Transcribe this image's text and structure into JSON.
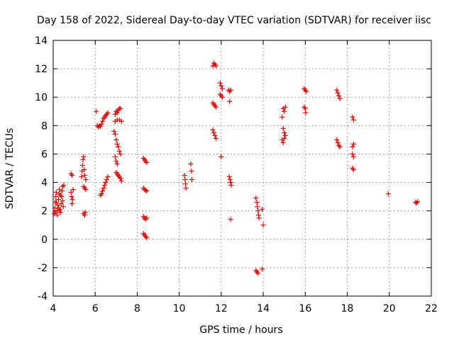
{
  "chart_data": {
    "type": "scatter",
    "title": "Day 158 of 2022, Sidereal Day-to-day VTEC variation (SDTVAR) for receiver iisc",
    "xlabel": "GPS time / hours",
    "ylabel": "SDTVAR / TECUs",
    "xlim": [
      4,
      22
    ],
    "ylim": [
      -4,
      14
    ],
    "xticks": [
      4,
      6,
      8,
      10,
      12,
      14,
      16,
      18,
      20,
      22
    ],
    "yticks": [
      -4,
      -2,
      0,
      2,
      4,
      6,
      8,
      10,
      12,
      14
    ],
    "grid": true,
    "marker_color": "#e00000",
    "series": [
      {
        "name": "SDTVAR",
        "points": [
          [
            4.05,
            1.8
          ],
          [
            4.08,
            2.2
          ],
          [
            4.1,
            2.6
          ],
          [
            4.12,
            3.0
          ],
          [
            4.15,
            3.3
          ],
          [
            4.18,
            2.0
          ],
          [
            4.2,
            1.7
          ],
          [
            4.22,
            2.4
          ],
          [
            4.25,
            2.8
          ],
          [
            4.28,
            3.2
          ],
          [
            4.3,
            3.5
          ],
          [
            4.32,
            2.1
          ],
          [
            4.35,
            1.9
          ],
          [
            4.38,
            2.5
          ],
          [
            4.4,
            3.0
          ],
          [
            4.42,
            3.4
          ],
          [
            4.45,
            3.7
          ],
          [
            4.48,
            2.3
          ],
          [
            4.5,
            3.8
          ],
          [
            4.15,
            2.6
          ],
          [
            4.25,
            2.2
          ],
          [
            4.35,
            3.1
          ],
          [
            4.45,
            2.7
          ],
          [
            4.1,
            1.9
          ],
          [
            4.3,
            2.0
          ],
          [
            4.85,
            4.6
          ],
          [
            4.9,
            4.5
          ],
          [
            4.85,
            3.3
          ],
          [
            4.88,
            3.0
          ],
          [
            4.92,
            2.8
          ],
          [
            4.95,
            3.5
          ],
          [
            4.9,
            2.5
          ],
          [
            5.35,
            4.4
          ],
          [
            5.38,
            4.8
          ],
          [
            5.4,
            5.2
          ],
          [
            5.42,
            5.6
          ],
          [
            5.45,
            5.8
          ],
          [
            5.48,
            4.9
          ],
          [
            5.5,
            4.5
          ],
          [
            5.55,
            4.2
          ],
          [
            5.45,
            3.7
          ],
          [
            5.5,
            3.6
          ],
          [
            5.55,
            3.5
          ],
          [
            5.45,
            1.8
          ],
          [
            5.5,
            1.7
          ],
          [
            5.52,
            1.9
          ],
          [
            6.05,
            9.0
          ],
          [
            6.1,
            8.0
          ],
          [
            6.15,
            7.9
          ],
          [
            6.2,
            8.0
          ],
          [
            6.25,
            7.95
          ],
          [
            6.3,
            8.1
          ],
          [
            6.35,
            8.3
          ],
          [
            6.4,
            8.5
          ],
          [
            6.45,
            8.6
          ],
          [
            6.5,
            8.7
          ],
          [
            6.55,
            8.8
          ],
          [
            6.6,
            8.9
          ],
          [
            6.25,
            3.1
          ],
          [
            6.3,
            3.2
          ],
          [
            6.35,
            3.4
          ],
          [
            6.4,
            3.6
          ],
          [
            6.45,
            3.8
          ],
          [
            6.5,
            4.0
          ],
          [
            6.55,
            4.2
          ],
          [
            6.6,
            4.4
          ],
          [
            6.9,
            7.6
          ],
          [
            6.95,
            7.4
          ],
          [
            7.0,
            7.0
          ],
          [
            7.05,
            6.7
          ],
          [
            7.1,
            6.5
          ],
          [
            7.15,
            6.2
          ],
          [
            7.2,
            6.0
          ],
          [
            6.95,
            5.8
          ],
          [
            7.0,
            5.5
          ],
          [
            7.05,
            5.3
          ],
          [
            6.95,
            8.8
          ],
          [
            7.0,
            9.0
          ],
          [
            7.05,
            8.9
          ],
          [
            7.1,
            9.1
          ],
          [
            7.15,
            9.2
          ],
          [
            7.2,
            9.2
          ],
          [
            6.95,
            8.3
          ],
          [
            7.05,
            8.4
          ],
          [
            7.15,
            8.4
          ],
          [
            7.25,
            8.3
          ],
          [
            7.0,
            4.7
          ],
          [
            7.05,
            4.6
          ],
          [
            7.1,
            4.5
          ],
          [
            7.15,
            4.4
          ],
          [
            7.2,
            4.3
          ],
          [
            7.25,
            4.1
          ],
          [
            8.3,
            5.7
          ],
          [
            8.35,
            5.6
          ],
          [
            8.4,
            5.5
          ],
          [
            8.45,
            5.4
          ],
          [
            8.3,
            3.6
          ],
          [
            8.35,
            3.5
          ],
          [
            8.4,
            3.45
          ],
          [
            8.45,
            3.4
          ],
          [
            8.3,
            1.6
          ],
          [
            8.35,
            1.5
          ],
          [
            8.4,
            1.4
          ],
          [
            8.45,
            1.5
          ],
          [
            8.3,
            0.4
          ],
          [
            8.35,
            0.3
          ],
          [
            8.4,
            0.2
          ],
          [
            8.45,
            0.1
          ],
          [
            10.25,
            4.5
          ],
          [
            10.28,
            4.2
          ],
          [
            10.3,
            3.9
          ],
          [
            10.32,
            3.6
          ],
          [
            10.55,
            5.3
          ],
          [
            10.58,
            4.8
          ],
          [
            10.6,
            4.2
          ],
          [
            11.6,
            12.2
          ],
          [
            11.65,
            12.4
          ],
          [
            11.7,
            12.3
          ],
          [
            11.75,
            12.2
          ],
          [
            11.6,
            9.6
          ],
          [
            11.65,
            9.5
          ],
          [
            11.7,
            9.4
          ],
          [
            11.75,
            9.3
          ],
          [
            11.6,
            7.7
          ],
          [
            11.65,
            7.5
          ],
          [
            11.7,
            7.3
          ],
          [
            11.75,
            7.1
          ],
          [
            11.95,
            11.0
          ],
          [
            12.0,
            10.8
          ],
          [
            12.05,
            10.6
          ],
          [
            11.95,
            10.2
          ],
          [
            12.0,
            10.1
          ],
          [
            12.05,
            10.0
          ],
          [
            12.0,
            5.8
          ],
          [
            12.35,
            10.5
          ],
          [
            12.4,
            10.4
          ],
          [
            12.45,
            10.5
          ],
          [
            12.4,
            9.7
          ],
          [
            12.38,
            4.4
          ],
          [
            12.42,
            4.2
          ],
          [
            12.45,
            4.0
          ],
          [
            12.48,
            3.8
          ],
          [
            12.45,
            1.4
          ],
          [
            13.65,
            2.9
          ],
          [
            13.7,
            2.6
          ],
          [
            13.72,
            2.3
          ],
          [
            13.75,
            2.0
          ],
          [
            13.78,
            1.7
          ],
          [
            13.8,
            1.5
          ],
          [
            13.95,
            2.1
          ],
          [
            14.0,
            1.0
          ],
          [
            13.65,
            -2.2
          ],
          [
            13.7,
            -2.3
          ],
          [
            13.75,
            -2.4
          ],
          [
            13.95,
            -2.1
          ],
          [
            14.95,
            9.2
          ],
          [
            15.0,
            9.0
          ],
          [
            15.05,
            9.3
          ],
          [
            14.9,
            8.6
          ],
          [
            14.95,
            7.8
          ],
          [
            15.0,
            7.5
          ],
          [
            15.05,
            7.3
          ],
          [
            14.9,
            7.0
          ],
          [
            14.95,
            6.8
          ],
          [
            15.0,
            7.1
          ],
          [
            15.95,
            10.6
          ],
          [
            16.0,
            10.5
          ],
          [
            16.05,
            10.4
          ],
          [
            15.95,
            9.3
          ],
          [
            16.0,
            9.2
          ],
          [
            16.02,
            8.9
          ],
          [
            17.5,
            10.5
          ],
          [
            17.55,
            10.3
          ],
          [
            17.6,
            10.1
          ],
          [
            17.65,
            9.9
          ],
          [
            17.5,
            7.0
          ],
          [
            17.55,
            6.8
          ],
          [
            17.6,
            6.6
          ],
          [
            17.65,
            6.5
          ],
          [
            18.25,
            8.6
          ],
          [
            18.3,
            8.4
          ],
          [
            18.25,
            6.5
          ],
          [
            18.3,
            6.7
          ],
          [
            18.25,
            6.0
          ],
          [
            18.3,
            5.8
          ],
          [
            18.25,
            5.0
          ],
          [
            18.3,
            4.9
          ],
          [
            19.95,
            3.2
          ],
          [
            21.25,
            2.6
          ],
          [
            21.3,
            2.55
          ],
          [
            21.35,
            2.65
          ]
        ]
      }
    ]
  }
}
